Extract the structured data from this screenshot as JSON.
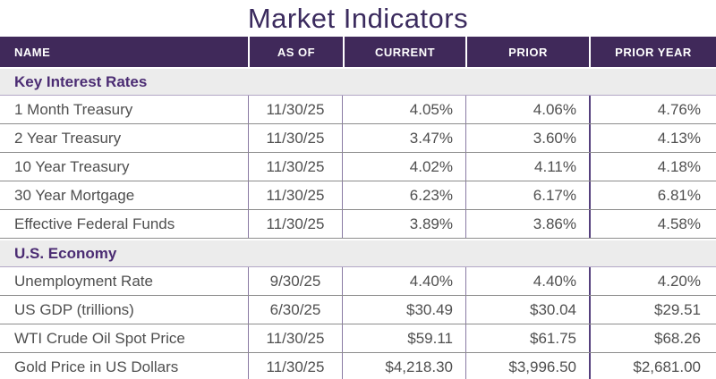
{
  "title": "Market Indicators",
  "colors": {
    "header_bg": "#40295a",
    "header_text": "#ffffff",
    "title_text": "#3b2b5e",
    "section_bg": "#ececec",
    "section_text": "#4b2c73",
    "body_text": "#4f4f4f",
    "row_border": "#8c8c8c",
    "column_border": "#8a7ba3",
    "strong_column_border": "#55407d"
  },
  "chart_data": {
    "type": "table",
    "title": "Market Indicators",
    "columns": [
      "NAME",
      "AS OF",
      "CURRENT",
      "PRIOR",
      "PRIOR YEAR"
    ],
    "sections": [
      {
        "label": "Key Interest Rates",
        "rows": [
          {
            "name": "1 Month Treasury",
            "as_of": "11/30/25",
            "current": "4.05%",
            "prior": "4.06%",
            "prior_year": "4.76%"
          },
          {
            "name": "2 Year Treasury",
            "as_of": "11/30/25",
            "current": "3.47%",
            "prior": "3.60%",
            "prior_year": "4.13%"
          },
          {
            "name": "10 Year Treasury",
            "as_of": "11/30/25",
            "current": "4.02%",
            "prior": "4.11%",
            "prior_year": "4.18%"
          },
          {
            "name": "30 Year Mortgage",
            "as_of": "11/30/25",
            "current": "6.23%",
            "prior": "6.17%",
            "prior_year": "6.81%"
          },
          {
            "name": "Effective Federal Funds",
            "as_of": "11/30/25",
            "current": "3.89%",
            "prior": "3.86%",
            "prior_year": "4.58%"
          }
        ]
      },
      {
        "label": "U.S. Economy",
        "rows": [
          {
            "name": "Unemployment Rate",
            "as_of": "9/30/25",
            "current": "4.40%",
            "prior": "4.40%",
            "prior_year": "4.20%"
          },
          {
            "name": "US GDP (trillions)",
            "as_of": "6/30/25",
            "current": "$30.49",
            "prior": "$30.04",
            "prior_year": "$29.51"
          },
          {
            "name": "WTI Crude Oil Spot Price",
            "as_of": "11/30/25",
            "current": "$59.11",
            "prior": "$61.75",
            "prior_year": "$68.26"
          },
          {
            "name": "Gold Price in US Dollars",
            "as_of": "11/30/25",
            "current": "$4,218.30",
            "prior": "$3,996.50",
            "prior_year": "$2,681.00"
          }
        ]
      }
    ]
  }
}
